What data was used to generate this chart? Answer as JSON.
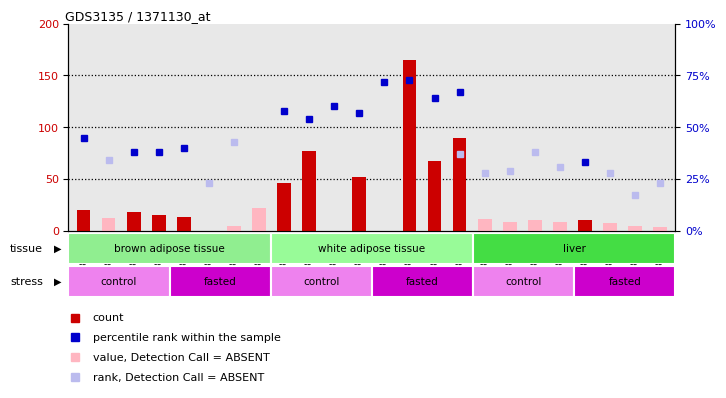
{
  "title": "GDS3135 / 1371130_at",
  "samples": [
    "GSM184414",
    "GSM184415",
    "GSM184416",
    "GSM184417",
    "GSM184418",
    "GSM184419",
    "GSM184420",
    "GSM184421",
    "GSM184422",
    "GSM184423",
    "GSM184424",
    "GSM184425",
    "GSM184426",
    "GSM184427",
    "GSM184428",
    "GSM184429",
    "GSM184430",
    "GSM184431",
    "GSM184432",
    "GSM184433",
    "GSM184434",
    "GSM184435",
    "GSM184436",
    "GSM184437"
  ],
  "count": [
    20,
    null,
    18,
    15,
    13,
    null,
    null,
    null,
    46,
    77,
    null,
    52,
    null,
    165,
    67,
    90,
    null,
    null,
    null,
    null,
    10,
    null,
    null,
    null
  ],
  "count_absent": [
    null,
    12,
    null,
    null,
    null,
    null,
    5,
    22,
    null,
    null,
    null,
    null,
    null,
    null,
    null,
    null,
    11,
    8,
    10,
    8,
    null,
    7,
    5,
    4
  ],
  "rank": [
    45,
    null,
    38,
    38,
    40,
    null,
    null,
    null,
    58,
    54,
    60,
    57,
    72,
    73,
    64,
    67,
    null,
    null,
    null,
    null,
    33,
    null,
    null,
    null
  ],
  "rank_absent": [
    null,
    34,
    null,
    null,
    null,
    23,
    43,
    null,
    null,
    null,
    null,
    null,
    null,
    null,
    null,
    37,
    28,
    29,
    38,
    31,
    null,
    28,
    17,
    23
  ],
  "tissue_groups": [
    {
      "label": "brown adipose tissue",
      "start": 0,
      "end": 8,
      "color": "#90EE90"
    },
    {
      "label": "white adipose tissue",
      "start": 8,
      "end": 16,
      "color": "#98FB98"
    },
    {
      "label": "liver",
      "start": 16,
      "end": 24,
      "color": "#44DD44"
    }
  ],
  "stress_groups": [
    {
      "label": "control",
      "start": 0,
      "end": 4,
      "color": "#EE82EE"
    },
    {
      "label": "fasted",
      "start": 4,
      "end": 8,
      "color": "#CC00CC"
    },
    {
      "label": "control",
      "start": 8,
      "end": 12,
      "color": "#EE82EE"
    },
    {
      "label": "fasted",
      "start": 12,
      "end": 16,
      "color": "#CC00CC"
    },
    {
      "label": "control",
      "start": 16,
      "end": 20,
      "color": "#EE82EE"
    },
    {
      "label": "fasted",
      "start": 20,
      "end": 24,
      "color": "#CC00CC"
    }
  ],
  "ylim_left": [
    0,
    200
  ],
  "ylim_right": [
    0,
    100
  ],
  "yticks_left": [
    0,
    50,
    100,
    150,
    200
  ],
  "yticks_right": [
    0,
    25,
    50,
    75,
    100
  ],
  "bar_color": "#CC0000",
  "bar_absent_color": "#FFB6C1",
  "rank_color": "#0000CC",
  "rank_absent_color": "#BBBBEE",
  "bg_color": "#E8E8E8",
  "plot_bg_color": "#FFFFFF",
  "grid_color": "black",
  "grid_style": "dotted"
}
